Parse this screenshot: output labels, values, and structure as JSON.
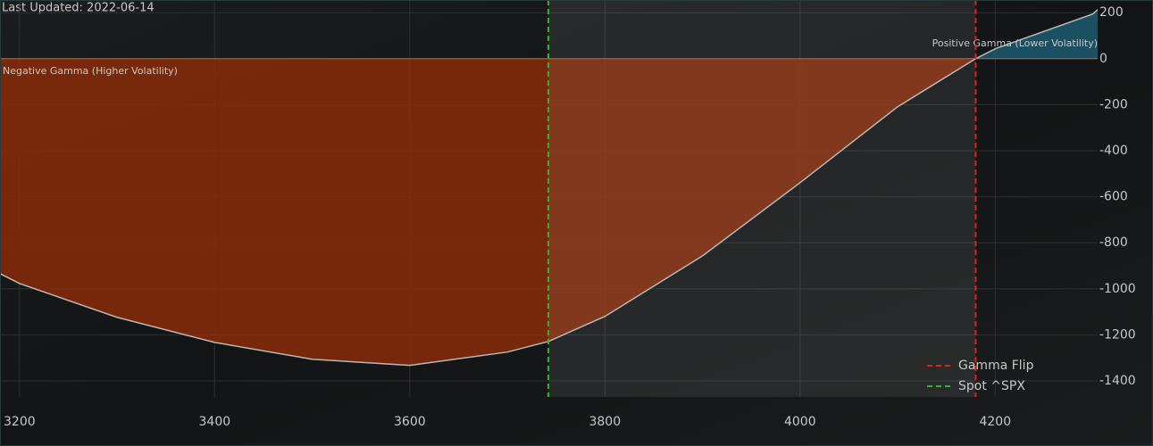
{
  "chart_data": {
    "type": "line",
    "title": "Last Updated: 2022-06-14",
    "x": [
      3180,
      3200,
      3300,
      3400,
      3500,
      3600,
      3700,
      3742,
      3800,
      3900,
      4000,
      4100,
      4180,
      4200,
      4300,
      4305
    ],
    "values": [
      -934,
      -977,
      -1124,
      -1233,
      -1306,
      -1333,
      -1275,
      -1229,
      -1120,
      -857,
      -539,
      -209,
      0,
      43,
      194,
      213
    ],
    "color": "#b8b8b8",
    "negative_fill": "#8a2c08",
    "positive_fill": "#1d5a70",
    "annotations": {
      "negative": "Negative Gamma (Higher Volatility)",
      "positive": "Positive Gamma (Lower Volatility)"
    },
    "vlines": [
      {
        "name": "Gamma Flip",
        "x": 4180,
        "color": "#e02020"
      },
      {
        "name": "Spot ^SPX",
        "x": 3742,
        "color": "#2fb52f"
      }
    ],
    "xlim": [
      3180,
      4305
    ],
    "ylim": [
      -1470,
      255
    ],
    "xticks": [
      3200,
      3400,
      3600,
      3800,
      4000,
      4200
    ],
    "yticks": [
      200,
      0,
      -200,
      -400,
      -600,
      -800,
      -1000,
      -1200,
      -1400
    ],
    "grid": true,
    "legend": "lower right"
  }
}
